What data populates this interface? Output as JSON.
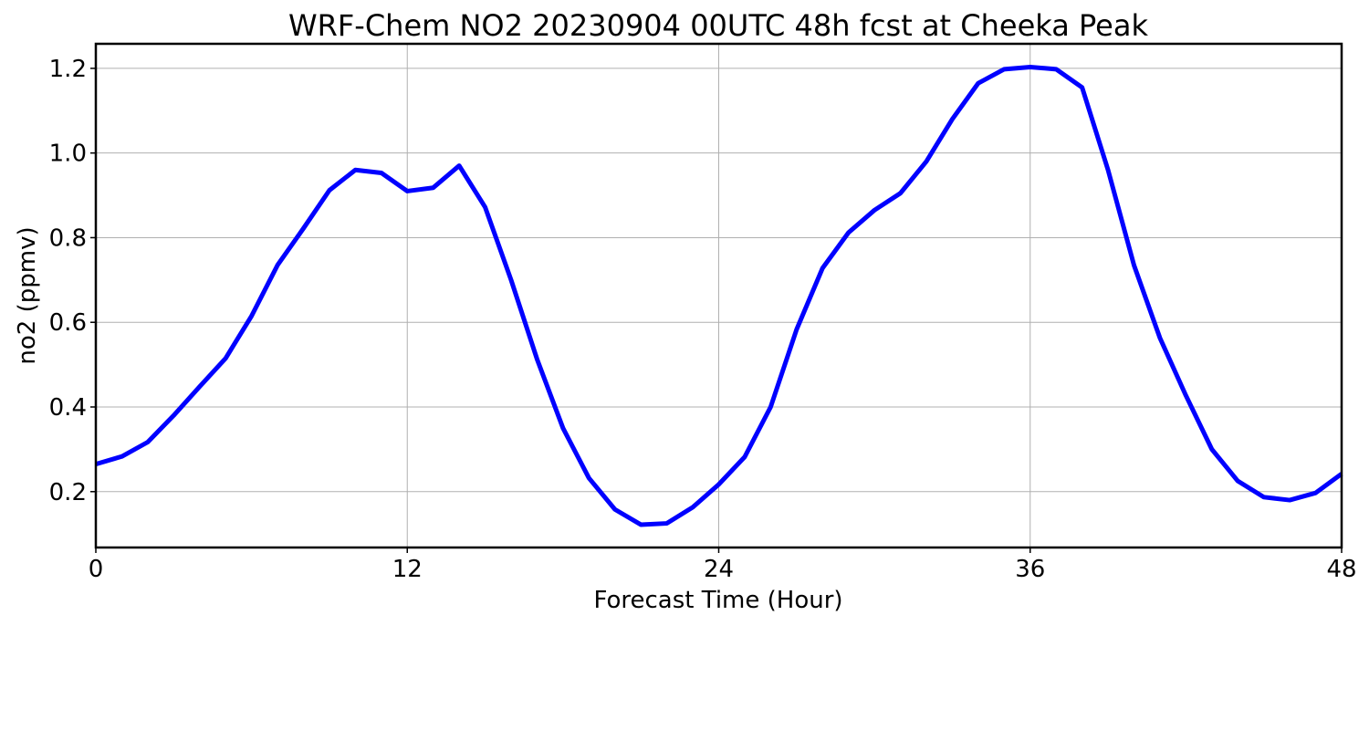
{
  "chart_data": {
    "type": "line",
    "title": "WRF-Chem NO2  20230904 00UTC 48h fcst at Cheeka Peak",
    "xlabel": "Forecast Time (Hour)",
    "ylabel": "no2  (ppmv)",
    "xlim": [
      0,
      48
    ],
    "ylim": [
      0.068,
      1.258
    ],
    "x_ticks": [
      0,
      12,
      24,
      36,
      48
    ],
    "y_ticks": [
      0.2,
      0.4,
      0.6,
      0.8,
      1.0,
      1.2
    ],
    "y_tick_labels": [
      "0.2",
      "0.4",
      "0.6",
      "0.8",
      "1.0",
      "1.2"
    ],
    "grid": true,
    "series": [
      {
        "color": "#0000ff",
        "x": [
          0,
          1,
          2,
          3,
          4,
          5,
          6,
          7,
          8,
          9,
          10,
          11,
          12,
          13,
          14,
          15,
          16,
          17,
          18,
          19,
          20,
          21,
          22,
          23,
          24,
          25,
          26,
          27,
          28,
          29,
          30,
          31,
          32,
          33,
          34,
          35,
          36,
          37,
          38,
          39,
          40,
          41,
          42,
          43,
          44,
          45,
          46,
          47,
          48
        ],
        "values": [
          0.265,
          0.283,
          0.317,
          0.38,
          0.448,
          0.515,
          0.615,
          0.735,
          0.822,
          0.912,
          0.96,
          0.953,
          0.91,
          0.918,
          0.97,
          0.872,
          0.7,
          0.513,
          0.35,
          0.232,
          0.158,
          0.122,
          0.125,
          0.163,
          0.217,
          0.282,
          0.4,
          0.583,
          0.728,
          0.812,
          0.865,
          0.905,
          0.98,
          1.08,
          1.165,
          1.198,
          1.203,
          1.198,
          1.155,
          0.96,
          0.735,
          0.563,
          0.427,
          0.3,
          0.225,
          0.187,
          0.18,
          0.197,
          0.242
        ]
      }
    ]
  }
}
